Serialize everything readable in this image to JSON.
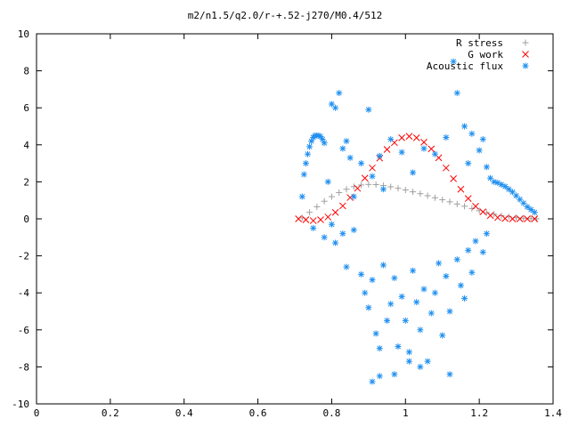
{
  "chart_data": {
    "type": "scatter",
    "title": "m2/n1.5/q2.0/r-+.52-j270/M0.4/512",
    "xlabel": "",
    "ylabel": "",
    "xlim": [
      0,
      1.4
    ],
    "ylim": [
      -10,
      10
    ],
    "xticks": [
      "0",
      "0.2",
      "0.4",
      "0.6",
      "0.8",
      "1",
      "1.2",
      "1.4"
    ],
    "yticks": [
      "10",
      "8",
      "6",
      "4",
      "2",
      "0",
      "-2",
      "-4",
      "-6",
      "-8",
      "-10"
    ],
    "legend_position": "top-right",
    "grid": false,
    "series": [
      {
        "name": "R stress",
        "marker": "plus",
        "color": "#a0a0a0",
        "points": [
          [
            0.72,
            0.05
          ],
          [
            0.74,
            0.35
          ],
          [
            0.76,
            0.65
          ],
          [
            0.78,
            0.95
          ],
          [
            0.8,
            1.2
          ],
          [
            0.82,
            1.42
          ],
          [
            0.84,
            1.6
          ],
          [
            0.86,
            1.74
          ],
          [
            0.88,
            1.83
          ],
          [
            0.9,
            1.86
          ],
          [
            0.92,
            1.85
          ],
          [
            0.94,
            1.8
          ],
          [
            0.96,
            1.73
          ],
          [
            0.98,
            1.65
          ],
          [
            1.0,
            1.56
          ],
          [
            1.02,
            1.46
          ],
          [
            1.04,
            1.36
          ],
          [
            1.06,
            1.25
          ],
          [
            1.08,
            1.14
          ],
          [
            1.1,
            1.03
          ],
          [
            1.12,
            0.92
          ],
          [
            1.14,
            0.8
          ],
          [
            1.16,
            0.68
          ],
          [
            1.18,
            0.56
          ],
          [
            1.2,
            0.44
          ],
          [
            1.22,
            0.34
          ],
          [
            1.24,
            0.25
          ],
          [
            1.26,
            0.17
          ],
          [
            1.28,
            0.11
          ],
          [
            1.3,
            0.06
          ],
          [
            1.32,
            0.03
          ],
          [
            1.34,
            0.01
          ],
          [
            1.355,
            0.0
          ]
        ]
      },
      {
        "name": "G work",
        "marker": "cross",
        "color": "#ff0000",
        "points": [
          [
            0.71,
            0.0
          ],
          [
            0.73,
            -0.05
          ],
          [
            0.75,
            -0.1
          ],
          [
            0.77,
            -0.05
          ],
          [
            0.79,
            0.1
          ],
          [
            0.81,
            0.35
          ],
          [
            0.83,
            0.7
          ],
          [
            0.85,
            1.15
          ],
          [
            0.87,
            1.65
          ],
          [
            0.89,
            2.2
          ],
          [
            0.91,
            2.75
          ],
          [
            0.93,
            3.28
          ],
          [
            0.95,
            3.75
          ],
          [
            0.97,
            4.12
          ],
          [
            0.99,
            4.38
          ],
          [
            1.01,
            4.46
          ],
          [
            1.03,
            4.38
          ],
          [
            1.05,
            4.14
          ],
          [
            1.07,
            3.78
          ],
          [
            1.09,
            3.3
          ],
          [
            1.11,
            2.75
          ],
          [
            1.13,
            2.17
          ],
          [
            1.15,
            1.6
          ],
          [
            1.17,
            1.1
          ],
          [
            1.19,
            0.68
          ],
          [
            1.21,
            0.38
          ],
          [
            1.23,
            0.18
          ],
          [
            1.25,
            0.07
          ],
          [
            1.27,
            0.02
          ],
          [
            1.29,
            0.0
          ],
          [
            1.31,
            0.0
          ],
          [
            1.33,
            0.0
          ],
          [
            1.35,
            0.0
          ]
        ]
      },
      {
        "name": "Acoustic flux",
        "marker": "star",
        "color": "#1f8fef",
        "points": [
          [
            0.72,
            1.2
          ],
          [
            0.725,
            2.4
          ],
          [
            0.73,
            3.0
          ],
          [
            0.735,
            3.5
          ],
          [
            0.74,
            3.9
          ],
          [
            0.745,
            4.2
          ],
          [
            0.75,
            4.4
          ],
          [
            0.755,
            4.5
          ],
          [
            0.76,
            4.5
          ],
          [
            0.765,
            4.5
          ],
          [
            0.77,
            4.45
          ],
          [
            0.775,
            4.3
          ],
          [
            0.78,
            4.1
          ],
          [
            0.79,
            2.0
          ],
          [
            0.8,
            6.2
          ],
          [
            0.81,
            6.0
          ],
          [
            0.82,
            6.8
          ],
          [
            0.83,
            3.8
          ],
          [
            0.84,
            4.2
          ],
          [
            0.85,
            3.3
          ],
          [
            0.86,
            1.2
          ],
          [
            0.88,
            3.0
          ],
          [
            0.9,
            5.9
          ],
          [
            0.91,
            2.3
          ],
          [
            0.93,
            3.4
          ],
          [
            0.94,
            1.6
          ],
          [
            0.96,
            4.3
          ],
          [
            0.99,
            3.6
          ],
          [
            1.02,
            2.5
          ],
          [
            1.05,
            3.8
          ],
          [
            1.08,
            3.5
          ],
          [
            1.11,
            4.4
          ],
          [
            1.13,
            8.5
          ],
          [
            1.14,
            6.8
          ],
          [
            1.16,
            5.0
          ],
          [
            1.17,
            3.0
          ],
          [
            1.18,
            4.6
          ],
          [
            1.2,
            3.7
          ],
          [
            1.21,
            4.3
          ],
          [
            1.22,
            2.8
          ],
          [
            1.23,
            2.2
          ],
          [
            1.24,
            2.0
          ],
          [
            1.25,
            1.95
          ],
          [
            1.26,
            1.85
          ],
          [
            1.27,
            1.75
          ],
          [
            1.28,
            1.6
          ],
          [
            1.29,
            1.45
          ],
          [
            1.3,
            1.25
          ],
          [
            1.31,
            1.05
          ],
          [
            1.32,
            0.85
          ],
          [
            1.33,
            0.65
          ],
          [
            1.34,
            0.5
          ],
          [
            1.35,
            0.35
          ],
          [
            0.75,
            -0.5
          ],
          [
            0.78,
            -1.0
          ],
          [
            0.8,
            -0.3
          ],
          [
            0.81,
            -1.3
          ],
          [
            0.83,
            -0.8
          ],
          [
            0.84,
            -2.6
          ],
          [
            0.86,
            -0.6
          ],
          [
            0.88,
            -3.0
          ],
          [
            0.89,
            -4.0
          ],
          [
            0.9,
            -4.8
          ],
          [
            0.91,
            -3.3
          ],
          [
            0.92,
            -6.2
          ],
          [
            0.93,
            -7.0
          ],
          [
            0.94,
            -2.5
          ],
          [
            0.95,
            -5.5
          ],
          [
            0.96,
            -4.6
          ],
          [
            0.97,
            -3.2
          ],
          [
            0.98,
            -6.9
          ],
          [
            0.99,
            -4.2
          ],
          [
            1.0,
            -5.5
          ],
          [
            1.01,
            -7.2
          ],
          [
            1.02,
            -2.8
          ],
          [
            1.03,
            -4.5
          ],
          [
            1.04,
            -6.0
          ],
          [
            1.05,
            -3.8
          ],
          [
            1.06,
            -7.7
          ],
          [
            1.07,
            -5.1
          ],
          [
            1.08,
            -4.0
          ],
          [
            1.09,
            -2.4
          ],
          [
            1.1,
            -6.3
          ],
          [
            1.11,
            -3.1
          ],
          [
            1.12,
            -5.0
          ],
          [
            1.14,
            -2.2
          ],
          [
            1.15,
            -3.6
          ],
          [
            1.16,
            -4.3
          ],
          [
            1.17,
            -1.7
          ],
          [
            1.18,
            -2.9
          ],
          [
            1.19,
            -1.2
          ],
          [
            1.21,
            -1.8
          ],
          [
            1.22,
            -0.8
          ],
          [
            0.91,
            -8.8
          ],
          [
            0.93,
            -8.5
          ],
          [
            0.97,
            -8.4
          ],
          [
            1.01,
            -7.7
          ],
          [
            1.04,
            -8.0
          ],
          [
            1.12,
            -8.4
          ]
        ]
      }
    ]
  }
}
